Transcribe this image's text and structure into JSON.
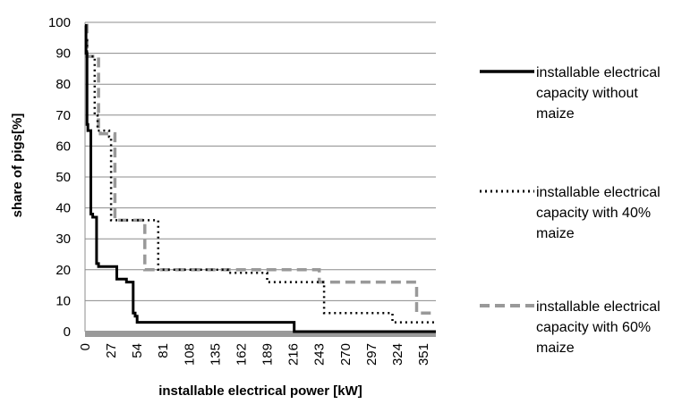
{
  "chart_data": {
    "type": "line",
    "title": "",
    "xlabel": "installable electrical power [kW]",
    "ylabel": "share of pigs[%]",
    "xlim": [
      0,
      364
    ],
    "ylim": [
      0,
      100
    ],
    "y_ticks": [
      0,
      10,
      20,
      30,
      40,
      50,
      60,
      70,
      80,
      90,
      100
    ],
    "x_ticks": [
      0,
      27,
      54,
      81,
      108,
      135,
      162,
      189,
      216,
      243,
      270,
      297,
      324,
      351
    ],
    "grid": "horizontal",
    "legend_position": "right",
    "series": [
      {
        "name": "installable electrical capacity without maize",
        "style": "solid",
        "color": "#000000",
        "x": [
          0,
          1,
          1,
          2,
          2,
          3,
          3,
          6,
          6,
          8,
          8,
          12,
          12,
          14,
          14,
          33,
          33,
          43,
          43,
          50,
          50,
          52,
          52,
          54,
          54,
          217,
          217,
          364
        ],
        "y": [
          99,
          99,
          90,
          90,
          67,
          67,
          65,
          65,
          38,
          38,
          37,
          37,
          22,
          22,
          21,
          21,
          17,
          17,
          16,
          16,
          6,
          6,
          5,
          5,
          3,
          3,
          0,
          0
        ]
      },
      {
        "name": "installable electrical capacity with 40% maize",
        "style": "dotted",
        "color": "#000000",
        "x": [
          0,
          1,
          1,
          2,
          2,
          10,
          10,
          13,
          13,
          25,
          25,
          27,
          27,
          76,
          76,
          92,
          92,
          148,
          148,
          189,
          189,
          198,
          198,
          248,
          248,
          319,
          319,
          364
        ],
        "y": [
          99,
          99,
          95,
          95,
          89,
          89,
          70,
          70,
          65,
          65,
          63,
          63,
          36,
          36,
          20,
          20,
          20,
          20,
          19,
          19,
          16,
          16,
          16,
          16,
          6,
          6,
          3,
          3
        ],
        "note": ""
      },
      {
        "name": "installable electrical capacity with 60% maize",
        "style": "dashed",
        "color": "#999999",
        "x": [
          0,
          2,
          2,
          14,
          14,
          16,
          16,
          31,
          31,
          34,
          34,
          62,
          62,
          85,
          85,
          243,
          243,
          344,
          344,
          364
        ],
        "y": [
          99,
          99,
          89,
          89,
          65,
          65,
          64,
          64,
          36,
          36,
          36,
          36,
          20,
          20,
          20,
          20,
          16,
          16,
          6,
          6
        ]
      }
    ]
  }
}
